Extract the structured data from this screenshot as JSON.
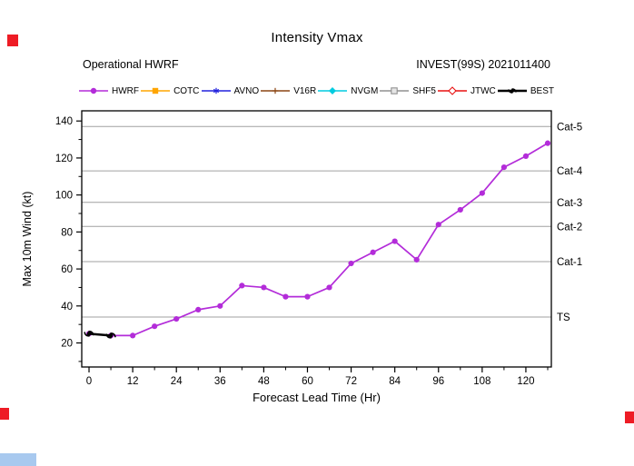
{
  "header": {
    "title": "Intensity Vmax",
    "left_label": "Operational HWRF",
    "right_label": "INVEST(99S) 2021011400"
  },
  "legend": [
    {
      "label": "HWRF",
      "color": "#B32CD9",
      "marker": "circle"
    },
    {
      "label": "COTC",
      "color": "#FFA500",
      "marker": "square"
    },
    {
      "label": "AVNO",
      "color": "#2222DD",
      "marker": "star"
    },
    {
      "label": "V16R",
      "color": "#8B4513",
      "marker": "plus"
    },
    {
      "label": "NVGM",
      "color": "#00CCE0",
      "marker": "diamond"
    },
    {
      "label": "SHF5",
      "color": "#909090",
      "marker": "open-square"
    },
    {
      "label": "JTWC",
      "color": "#E81010",
      "marker": "open-diamond"
    },
    {
      "label": "BEST",
      "color": "#000000",
      "marker": "hurricane"
    }
  ],
  "chart_data": {
    "type": "line",
    "title": "Intensity Vmax",
    "xlabel": "Forecast Lead Time (Hr)",
    "ylabel": "Max 10m Wind (kt)",
    "xlim": [
      -2,
      127
    ],
    "ylim": [
      7,
      145.5
    ],
    "x_ticks": [
      0,
      12,
      24,
      36,
      48,
      60,
      72,
      84,
      96,
      108,
      120
    ],
    "y_ticks": [
      20,
      40,
      60,
      80,
      100,
      120,
      140
    ],
    "grid": "horizontal category threshold lines only",
    "legend_position": "top",
    "category_lines": [
      {
        "label": "TS",
        "value": 34
      },
      {
        "label": "Cat-1",
        "value": 64
      },
      {
        "label": "Cat-2",
        "value": 83
      },
      {
        "label": "Cat-3",
        "value": 96
      },
      {
        "label": "Cat-4",
        "value": 113
      },
      {
        "label": "Cat-5",
        "value": 137
      }
    ],
    "series": [
      {
        "name": "HWRF",
        "color": "#B32CD9",
        "marker": "circle",
        "line_width": 1.7,
        "x": [
          0,
          6,
          12,
          18,
          24,
          30,
          36,
          42,
          48,
          54,
          60,
          66,
          72,
          78,
          84,
          90,
          96,
          102,
          108,
          114,
          120,
          126
        ],
        "y": [
          25,
          24,
          24,
          29,
          33,
          38,
          40,
          51,
          50,
          45,
          45,
          50,
          63,
          69,
          75,
          65,
          84,
          92,
          101,
          115,
          121,
          128
        ]
      },
      {
        "name": "BEST",
        "color": "#000000",
        "marker": "hurricane",
        "line_width": 2.5,
        "x": [
          0,
          6
        ],
        "y": [
          25,
          24
        ]
      }
    ]
  },
  "artifacts": {
    "red_marker_color": "#EE1C25",
    "blue_bar_color": "#A8C9EF"
  }
}
